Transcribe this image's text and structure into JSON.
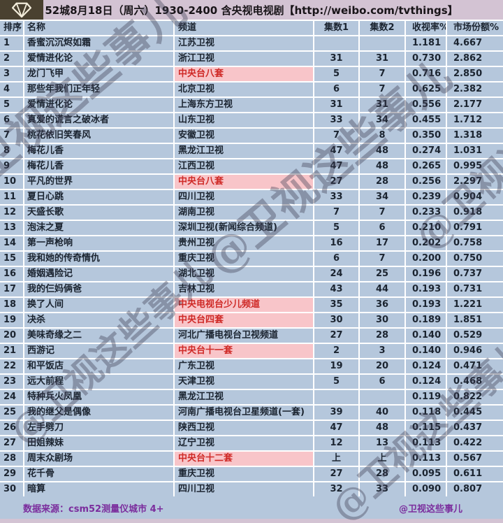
{
  "title_bar": {
    "title": "52城8月18日（周六）1930-2400 含央视电视剧【http://weibo.com/tvthings】",
    "logo_icon": "diamond-gem-icon"
  },
  "table": {
    "columns": [
      "排序",
      "名称",
      "频道",
      "集数1",
      "集数2",
      "收视率%",
      "市场份额%"
    ],
    "rows": [
      {
        "rank": "1",
        "name": "香蜜沉沉烬如霜",
        "channel": "江苏卫视",
        "ep1": "",
        "ep2": "",
        "rating": "1.181",
        "share": "4.667",
        "highlight": false
      },
      {
        "rank": "2",
        "name": "爱情进化论",
        "channel": "浙江卫视",
        "ep1": "31",
        "ep2": "31",
        "rating": "0.730",
        "share": "2.862",
        "highlight": false
      },
      {
        "rank": "3",
        "name": "龙门飞甲",
        "channel": "中央台八套",
        "ep1": "5",
        "ep2": "7",
        "rating": "0.716",
        "share": "2.850",
        "highlight": true
      },
      {
        "rank": "4",
        "name": "那些年我们正年轻",
        "channel": "北京卫视",
        "ep1": "6",
        "ep2": "7",
        "rating": "0.625",
        "share": "2.382",
        "highlight": false
      },
      {
        "rank": "5",
        "name": "爱情进化论",
        "channel": "上海东方卫视",
        "ep1": "31",
        "ep2": "31",
        "rating": "0.556",
        "share": "2.177",
        "highlight": false
      },
      {
        "rank": "6",
        "name": "真爱的谎言之破冰者",
        "channel": "山东卫视",
        "ep1": "33",
        "ep2": "34",
        "rating": "0.455",
        "share": "1.712",
        "highlight": false
      },
      {
        "rank": "7",
        "name": "桃花依旧笑春风",
        "channel": "安徽卫视",
        "ep1": "7",
        "ep2": "8",
        "rating": "0.350",
        "share": "1.318",
        "highlight": false
      },
      {
        "rank": "8",
        "name": "梅花儿香",
        "channel": "黑龙江卫视",
        "ep1": "47",
        "ep2": "48",
        "rating": "0.274",
        "share": "1.031",
        "highlight": false
      },
      {
        "rank": "9",
        "name": "梅花儿香",
        "channel": "江西卫视",
        "ep1": "47",
        "ep2": "48",
        "rating": "0.265",
        "share": "0.995",
        "highlight": false
      },
      {
        "rank": "10",
        "name": "平凡的世界",
        "channel": "中央台八套",
        "ep1": "27",
        "ep2": "28",
        "rating": "0.256",
        "share": "2.297",
        "highlight": true
      },
      {
        "rank": "11",
        "name": "夏日心跳",
        "channel": "四川卫视",
        "ep1": "33",
        "ep2": "34",
        "rating": "0.239",
        "share": "0.904",
        "highlight": false
      },
      {
        "rank": "12",
        "name": "天盛长歌",
        "channel": "湖南卫视",
        "ep1": "7",
        "ep2": "7",
        "rating": "0.233",
        "share": "0.918",
        "highlight": false
      },
      {
        "rank": "13",
        "name": "泡沫之夏",
        "channel": "深圳卫视(新闻综合频道)",
        "ep1": "5",
        "ep2": "6",
        "rating": "0.210",
        "share": "0.791",
        "highlight": false
      },
      {
        "rank": "14",
        "name": "第一声枪响",
        "channel": "贵州卫视",
        "ep1": "16",
        "ep2": "17",
        "rating": "0.202",
        "share": "0.758",
        "highlight": false
      },
      {
        "rank": "15",
        "name": "我和她的传奇情仇",
        "channel": "重庆卫视",
        "ep1": "6",
        "ep2": "7",
        "rating": "0.200",
        "share": "0.750",
        "highlight": false
      },
      {
        "rank": "16",
        "name": "婚姻遇险记",
        "channel": "湖北卫视",
        "ep1": "24",
        "ep2": "25",
        "rating": "0.196",
        "share": "0.737",
        "highlight": false
      },
      {
        "rank": "17",
        "name": "我的仨妈俩爸",
        "channel": "吉林卫视",
        "ep1": "43",
        "ep2": "44",
        "rating": "0.193",
        "share": "0.731",
        "highlight": false
      },
      {
        "rank": "18",
        "name": "换了人间",
        "channel": "中央电视台少儿频道",
        "ep1": "35",
        "ep2": "36",
        "rating": "0.193",
        "share": "1.221",
        "highlight": true
      },
      {
        "rank": "19",
        "name": "决杀",
        "channel": "中央台四套",
        "ep1": "30",
        "ep2": "30",
        "rating": "0.189",
        "share": "1.851",
        "highlight": true
      },
      {
        "rank": "20",
        "name": "美味奇缘之二",
        "channel": "河北广播电视台卫视频道",
        "ep1": "27",
        "ep2": "28",
        "rating": "0.140",
        "share": "0.529",
        "highlight": false
      },
      {
        "rank": "21",
        "name": "西游记",
        "channel": "中央台十一套",
        "ep1": "2",
        "ep2": "3",
        "rating": "0.140",
        "share": "0.946",
        "highlight": true
      },
      {
        "rank": "22",
        "name": "和平饭店",
        "channel": "广东卫视",
        "ep1": "19",
        "ep2": "20",
        "rating": "0.124",
        "share": "0.471",
        "highlight": false
      },
      {
        "rank": "23",
        "name": "远大前程",
        "channel": "天津卫视",
        "ep1": "5",
        "ep2": "6",
        "rating": "0.124",
        "share": "0.468",
        "highlight": false
      },
      {
        "rank": "24",
        "name": "特种兵火凤凰",
        "channel": "黑龙江卫视",
        "ep1": "",
        "ep2": "",
        "rating": "0.119",
        "share": "0.822",
        "highlight": false
      },
      {
        "rank": "25",
        "name": "我的继父是偶像",
        "channel": "河南广播电视台卫星频道(一套)",
        "ep1": "39",
        "ep2": "40",
        "rating": "0.118",
        "share": "0.445",
        "highlight": false
      },
      {
        "rank": "26",
        "name": "左手劈刀",
        "channel": "陕西卫视",
        "ep1": "47",
        "ep2": "48",
        "rating": "0.115",
        "share": "0.437",
        "highlight": false
      },
      {
        "rank": "27",
        "name": "田姐辣妹",
        "channel": "辽宁卫视",
        "ep1": "12",
        "ep2": "13",
        "rating": "0.113",
        "share": "0.422",
        "highlight": false
      },
      {
        "rank": "28",
        "name": "周末众剧场",
        "channel": "中央台十二套",
        "ep1": "上",
        "ep2": "上",
        "rating": "0.113",
        "share": "0.567",
        "highlight": true
      },
      {
        "rank": "29",
        "name": "花千骨",
        "channel": "重庆卫视",
        "ep1": "27",
        "ep2": "28",
        "rating": "0.095",
        "share": "0.611",
        "highlight": false
      },
      {
        "rank": "30",
        "name": "暗算",
        "channel": "四川卫视",
        "ep1": "32",
        "ep2": "33",
        "rating": "0.090",
        "share": "0.807",
        "highlight": false
      }
    ]
  },
  "footer": {
    "source": "数据来源：csm52测量仪城市 4+",
    "credit": "@卫视这些事儿"
  },
  "watermark": {
    "text": "@卫视这些事儿"
  },
  "colors": {
    "row_bg": "#b5c7dc",
    "highlight_bg": "#f8c5c9",
    "highlight_text": "#cf2a27",
    "titlebar_bg": "#d3c3d3",
    "text_dark": "#1b2430",
    "footer_text": "#7b2d9d",
    "logo_bg": "#4a4130",
    "watermark": "#3e3e54"
  }
}
